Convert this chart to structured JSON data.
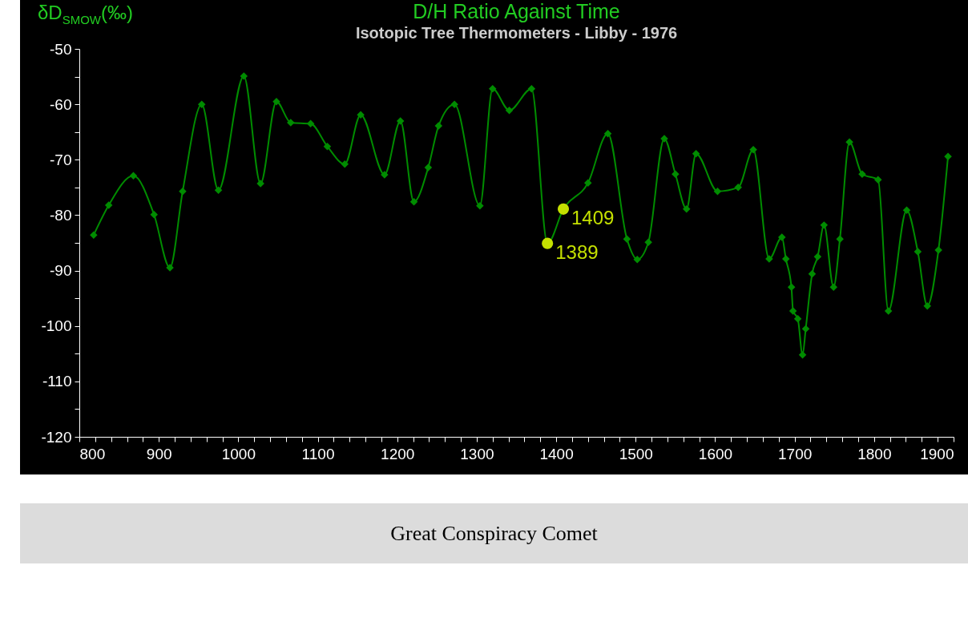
{
  "chart_data": {
    "type": "line",
    "title": "D/H Ratio Against Time",
    "subtitle": "Isotopic Tree Thermometers - Libby - 1976",
    "ylabel": "δD$_{SMOW}$(‰)",
    "xlim": [
      800,
      1900
    ],
    "xticks": [
      800,
      {
        "value": 820,
        "label": null
      },
      {
        "value": 840,
        "label": null
      },
      {
        "value": 860,
        "label": null
      },
      {
        "value": 880,
        "label": null
      },
      900,
      {
        "value": 920,
        "label": null
      },
      {
        "value": 940,
        "label": null
      },
      {
        "value": 960,
        "label": null
      },
      {
        "value": 980,
        "label": null
      },
      1000,
      {
        "value": 1020,
        "label": null
      },
      {
        "value": 1040,
        "label": null
      },
      {
        "value": 1060,
        "label": null
      },
      {
        "value": 1080,
        "label": null
      },
      1100,
      {
        "value": 1120,
        "label": null
      },
      {
        "value": 1140,
        "label": null
      },
      {
        "value": 1160,
        "label": null
      },
      {
        "value": 1180,
        "label": null
      },
      1200,
      {
        "value": 1220,
        "label": null
      },
      {
        "value": 1240,
        "label": null
      },
      {
        "value": 1260,
        "label": null
      },
      {
        "value": 1280,
        "label": null
      },
      1300,
      {
        "value": 1320,
        "label": null
      },
      {
        "value": 1340,
        "label": null
      },
      {
        "value": 1360,
        "label": null
      },
      {
        "value": 1380,
        "label": null
      },
      1400,
      {
        "value": 1420,
        "label": null
      },
      {
        "value": 1440,
        "label": null
      },
      {
        "value": 1460,
        "label": null
      },
      {
        "value": 1480,
        "label": null
      },
      1500,
      {
        "value": 1520,
        "label": null
      },
      {
        "value": 1540,
        "label": null
      },
      {
        "value": 1560,
        "label": null
      },
      {
        "value": 1580,
        "label": null
      },
      1600,
      {
        "value": 1620,
        "label": null
      },
      {
        "value": 1640,
        "label": null
      },
      {
        "value": 1660,
        "label": null
      },
      {
        "value": 1680,
        "label": null
      },
      1700,
      {
        "value": 1720,
        "label": null
      },
      {
        "value": 1740,
        "label": null
      },
      {
        "value": 1760,
        "label": null
      },
      {
        "value": 1780,
        "label": null
      },
      1800,
      {
        "value": 1820,
        "label": null
      },
      {
        "value": 1840,
        "label": null
      },
      {
        "value": 1860,
        "label": null
      },
      {
        "value": 1880,
        "label": null
      },
      1900
    ],
    "ylim": [
      -120,
      -50
    ],
    "yticks": [
      -120,
      {
        "value": -115,
        "label": null
      },
      -110,
      {
        "value": -105,
        "label": null
      },
      -100,
      {
        "value": -95,
        "label": null
      },
      -90,
      {
        "value": -85,
        "label": null
      },
      -80,
      {
        "value": -75,
        "label": null
      },
      -70,
      {
        "value": -65,
        "label": null
      },
      -60,
      {
        "value": -55,
        "label": null
      },
      -50
    ],
    "grid": false,
    "marker": "diamond",
    "line_style": "solid",
    "series": [
      {
        "color": "#008c00",
        "x": [
          818,
          837,
          868,
          894,
          914,
          930,
          954,
          975,
          1007,
          1028,
          1048,
          1066,
          1091,
          1112,
          1134,
          1154,
          1184,
          1204,
          1221,
          1239,
          1252,
          1272,
          1304,
          1320,
          1341,
          1369,
          1389,
          1409,
          1440,
          1465,
          1489,
          1502,
          1516,
          1536,
          1550,
          1564,
          1576,
          1603,
          1629,
          1648,
          1668,
          1684,
          1689,
          1696,
          1698,
          1704,
          1710,
          1714,
          1722,
          1729,
          1737,
          1749,
          1757,
          1769,
          1785,
          1805,
          1818,
          1841,
          1855,
          1867,
          1881,
          1893
        ],
        "values": [
          -83.6,
          -78.2,
          -72.9,
          -79.9,
          -89.5,
          -75.7,
          -60.0,
          -75.5,
          -54.9,
          -74.3,
          -59.5,
          -63.3,
          -63.5,
          -67.6,
          -70.8,
          -61.9,
          -72.7,
          -63.0,
          -77.6,
          -71.4,
          -63.9,
          -60.0,
          -78.3,
          -57.2,
          -61.1,
          -57.2,
          -85.1,
          -78.9,
          -74.2,
          -65.3,
          -84.3,
          -88.0,
          -84.9,
          -66.2,
          -72.6,
          -78.9,
          -68.9,
          -75.7,
          -75.0,
          -68.2,
          -87.9,
          -84.0,
          -87.9,
          -93.0,
          -97.3,
          -98.7,
          -105.2,
          -100.5,
          -90.6,
          -87.5,
          -81.8,
          -93.0,
          -84.3,
          -66.8,
          -72.6,
          -73.6,
          -97.3,
          -79.1,
          -86.6,
          -96.4,
          -86.3,
          -69.4
        ]
      },
      {
        "type": "scatter",
        "color": "#c4e000",
        "marker": "circle",
        "x": [
          1389,
          1409
        ],
        "values": [
          -85.1,
          -78.9
        ]
      }
    ],
    "annotations": [
      {
        "text": "1389",
        "x": 1389,
        "y": -85.1
      },
      {
        "text": "1409",
        "x": 1409,
        "y": -78.9
      },
      "Great Conspiracy Comet"
    ]
  }
}
